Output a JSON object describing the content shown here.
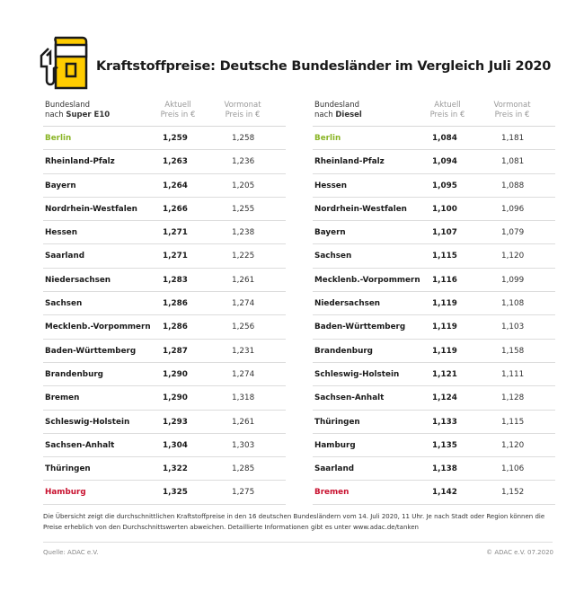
{
  "title": "Kraftstoffpreise: Deutsche Bundesländer im Vergleich Juli 2020",
  "colors": {
    "accent_yellow": "#ffcc00",
    "lowest_green": "#8ab526",
    "highest_red": "#c8102e"
  },
  "logo_icon": "fuel-pump-icon",
  "chart_data": [
    {
      "type": "table",
      "header": {
        "col1_line1": "Bundesland",
        "col1_line2_prefix": "nach ",
        "col1_line2_bold": "Super E10",
        "col2_line1": "Aktuell",
        "col2_line2": "Preis in €",
        "col3_line1": "Vormonat",
        "col3_line2": "Preis in €"
      },
      "rows": [
        {
          "state": "Berlin",
          "current": "1,259",
          "previous": "1,258",
          "highlight": "green"
        },
        {
          "state": "Rheinland-Pfalz",
          "current": "1,263",
          "previous": "1,236"
        },
        {
          "state": "Bayern",
          "current": "1,264",
          "previous": "1,205"
        },
        {
          "state": "Nordrhein-Westfalen",
          "current": "1,266",
          "previous": "1,255"
        },
        {
          "state": "Hessen",
          "current": "1,271",
          "previous": "1,238"
        },
        {
          "state": "Saarland",
          "current": "1,271",
          "previous": "1,225"
        },
        {
          "state": "Niedersachsen",
          "current": "1,283",
          "previous": "1,261"
        },
        {
          "state": "Sachsen",
          "current": "1,286",
          "previous": "1,274"
        },
        {
          "state": "Mecklenb.-Vorpommern",
          "current": "1,286",
          "previous": "1,256"
        },
        {
          "state": "Baden-Württemberg",
          "current": "1,287",
          "previous": "1,231"
        },
        {
          "state": "Brandenburg",
          "current": "1,290",
          "previous": "1,274"
        },
        {
          "state": "Bremen",
          "current": "1,290",
          "previous": "1,318"
        },
        {
          "state": "Schleswig-Holstein",
          "current": "1,293",
          "previous": "1,261"
        },
        {
          "state": "Sachsen-Anhalt",
          "current": "1,304",
          "previous": "1,303"
        },
        {
          "state": "Thüringen",
          "current": "1,322",
          "previous": "1,285"
        },
        {
          "state": "Hamburg",
          "current": "1,325",
          "previous": "1,275",
          "highlight": "red"
        }
      ]
    },
    {
      "type": "table",
      "header": {
        "col1_line1": "Bundesland",
        "col1_line2_prefix": "nach ",
        "col1_line2_bold": "Diesel",
        "col2_line1": "Aktuell",
        "col2_line2": "Preis in €",
        "col3_line1": "Vormonat",
        "col3_line2": "Preis in €"
      },
      "rows": [
        {
          "state": "Berlin",
          "current": "1,084",
          "previous": "1,181",
          "highlight": "green"
        },
        {
          "state": "Rheinland-Pfalz",
          "current": "1,094",
          "previous": "1,081"
        },
        {
          "state": "Hessen",
          "current": "1,095",
          "previous": "1,088"
        },
        {
          "state": "Nordrhein-Westfalen",
          "current": "1,100",
          "previous": "1,096"
        },
        {
          "state": "Bayern",
          "current": "1,107",
          "previous": "1,079"
        },
        {
          "state": "Sachsen",
          "current": "1,115",
          "previous": "1,120"
        },
        {
          "state": "Mecklenb.-Vorpommern",
          "current": "1,116",
          "previous": "1,099"
        },
        {
          "state": "Niedersachsen",
          "current": "1,119",
          "previous": "1,108"
        },
        {
          "state": "Baden-Württemberg",
          "current": "1,119",
          "previous": "1,103"
        },
        {
          "state": "Brandenburg",
          "current": "1,119",
          "previous": "1,158"
        },
        {
          "state": "Schleswig-Holstein",
          "current": "1,121",
          "previous": "1,111"
        },
        {
          "state": "Sachsen-Anhalt",
          "current": "1,124",
          "previous": "1,128"
        },
        {
          "state": "Thüringen",
          "current": "1,133",
          "previous": "1,115"
        },
        {
          "state": "Hamburg",
          "current": "1,135",
          "previous": "1,120"
        },
        {
          "state": "Saarland",
          "current": "1,138",
          "previous": "1,106"
        },
        {
          "state": "Bremen",
          "current": "1,142",
          "previous": "1,152",
          "highlight": "red"
        }
      ]
    }
  ],
  "footnote": "Die Übersicht zeigt die durchschnittlichen Kraftstoffpreise in den 16 deutschen Bundesländern vom 14. Juli 2020, 11 Uhr.  Je nach Stadt oder Region können die Preise erheblich von den Durchschnittswerten abweichen. Detaillierte Informationen gibt es unter www.adac.de/tanken",
  "source": "Quelle: ADAC e.V.",
  "copyright": "© ADAC e.V. 07.2020"
}
